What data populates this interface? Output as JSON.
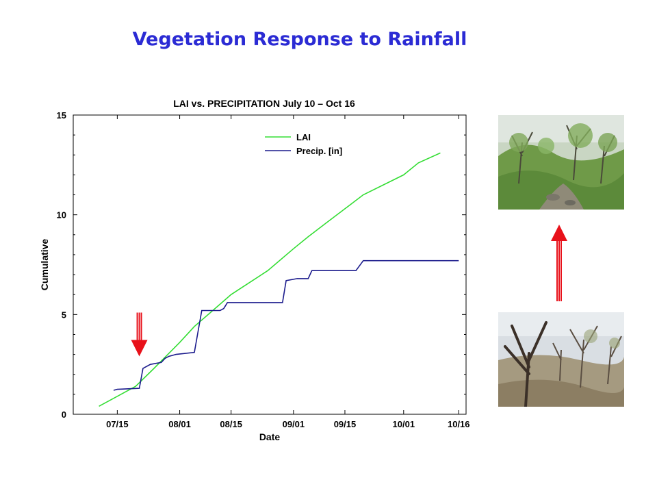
{
  "slide": {
    "title": "Vegetation Response to Rainfall",
    "title_color": "#2b2bd4",
    "arrow_color": "#e8111a"
  },
  "photos": {
    "top": {
      "icon": "green-shrubland-photo-icon",
      "description_color": "#5f8f3e"
    },
    "bottom": {
      "icon": "dry-shrubland-photo-icon",
      "description_color": "#8a7a62"
    }
  },
  "chart_data": {
    "type": "line",
    "title": "LAI vs. PRECIPITATION July 10 – Oct 16",
    "xlabel": "Date",
    "ylabel": "Cumulative",
    "x_ticks": [
      "07/15",
      "08/01",
      "08/15",
      "09/01",
      "09/15",
      "10/01",
      "10/16"
    ],
    "x_tick_dates": [
      "2000-07-15",
      "2000-08-01",
      "2000-08-15",
      "2000-09-01",
      "2000-09-15",
      "2000-10-01",
      "2000-10-16"
    ],
    "xlim": [
      "2000-07-03",
      "2000-10-18"
    ],
    "y_ticks": [
      0,
      5,
      10,
      15
    ],
    "ylim": [
      0,
      15
    ],
    "grid": false,
    "legend_position": "top-center",
    "series": [
      {
        "name": "LAI",
        "color": "#33dd33",
        "points": [
          [
            "2000-07-10",
            0.4
          ],
          [
            "2000-07-15",
            0.9
          ],
          [
            "2000-07-20",
            1.4
          ],
          [
            "2000-07-25",
            2.3
          ],
          [
            "2000-08-01",
            3.6
          ],
          [
            "2000-08-05",
            4.4
          ],
          [
            "2000-08-10",
            5.2
          ],
          [
            "2000-08-15",
            6.0
          ],
          [
            "2000-08-20",
            6.6
          ],
          [
            "2000-08-25",
            7.2
          ],
          [
            "2000-09-01",
            8.3
          ],
          [
            "2000-09-05",
            8.9
          ],
          [
            "2000-09-10",
            9.6
          ],
          [
            "2000-09-15",
            10.3
          ],
          [
            "2000-09-20",
            11.0
          ],
          [
            "2000-10-01",
            12.0
          ],
          [
            "2000-10-05",
            12.6
          ],
          [
            "2000-10-11",
            13.1
          ]
        ]
      },
      {
        "name": "Precip. [in]",
        "color": "#1a1a8c",
        "points": [
          [
            "2000-07-14",
            1.2
          ],
          [
            "2000-07-15",
            1.25
          ],
          [
            "2000-07-21",
            1.3
          ],
          [
            "2000-07-22",
            2.3
          ],
          [
            "2000-07-24",
            2.5
          ],
          [
            "2000-07-27",
            2.6
          ],
          [
            "2000-07-28",
            2.8
          ],
          [
            "2000-07-29",
            2.9
          ],
          [
            "2000-07-31",
            3.0
          ],
          [
            "2000-08-05",
            3.1
          ],
          [
            "2000-08-07",
            5.2
          ],
          [
            "2000-08-12",
            5.2
          ],
          [
            "2000-08-13",
            5.3
          ],
          [
            "2000-08-14",
            5.6
          ],
          [
            "2000-08-29",
            5.6
          ],
          [
            "2000-08-30",
            6.7
          ],
          [
            "2000-09-02",
            6.8
          ],
          [
            "2000-09-05",
            6.8
          ],
          [
            "2000-09-06",
            7.2
          ],
          [
            "2000-09-18",
            7.2
          ],
          [
            "2000-09-20",
            7.7
          ],
          [
            "2000-10-16",
            7.7
          ]
        ]
      }
    ],
    "annotations": [
      {
        "type": "down-arrow",
        "x": "2000-07-21",
        "y": 2.9
      }
    ]
  }
}
